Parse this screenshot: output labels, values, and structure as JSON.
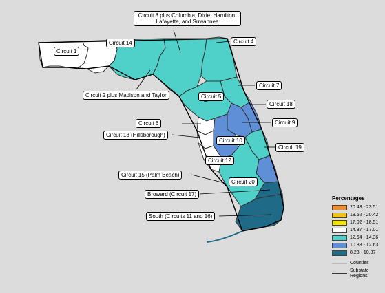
{
  "labels": {
    "circuit1": "Circuit 1",
    "circuit14": "Circuit 14",
    "circuit8": "Circuit 8 plus Columbia, Dixie, Hamilton, Lafayette, and Suwannee",
    "circuit4": "Circuit 4",
    "circuit2": "Circuit 2 plus Madison and Taylor",
    "circuit7": "Circuit 7",
    "circuit5": "Circuit 5",
    "circuit18": "Circuit 18",
    "circuit6": "Circuit 6",
    "circuit9": "Circuit 9",
    "circuit13": "Circuit 13 (Hillsborough)",
    "circuit10": "Circuit 10",
    "circuit19": "Circuit 19",
    "circuit12": "Circuit 12",
    "circuit15": "Circuit 15 (Palm Beach)",
    "circuit20": "Circuit 20",
    "circuit17": "Broward (Circuit 17)",
    "circuit11_16": "South (Circuits 11 and 16)"
  },
  "legend": {
    "title": "Percentages",
    "classes": [
      {
        "range": "20.43 - 23.51",
        "color": "#f28c28"
      },
      {
        "range": "18.52 - 20.42",
        "color": "#f2c21a"
      },
      {
        "range": "17.02 - 18.51",
        "color": "#f5e400"
      },
      {
        "range": "14.37 - 17.01",
        "color": "#ffffff"
      },
      {
        "range": "12.64 - 14.36",
        "color": "#4fd1c9"
      },
      {
        "range": "10.88 - 12.63",
        "color": "#5f8fd6"
      },
      {
        "range": "8.23 - 10.87",
        "color": "#1f6a86"
      }
    ],
    "counties_label": "Counties",
    "substate_label": "Substate Regions"
  },
  "region_values": {
    "circuit1": "14.37 - 17.01",
    "circuit14": "14.37 - 17.01",
    "circuit8": "12.64 - 14.36",
    "circuit4": "12.64 - 14.36",
    "circuit2": "12.64 - 14.36",
    "circuit7": "12.64 - 14.36",
    "circuit5": "12.64 - 14.36",
    "circuit18": "10.88 - 12.63",
    "circuit6": "14.37 - 17.01",
    "circuit9": "10.88 - 12.63",
    "circuit13": "14.37 - 17.01",
    "circuit10": "10.88 - 12.63",
    "circuit19": "12.64 - 14.36",
    "circuit12": "14.37 - 17.01",
    "circuit15": "10.88 - 12.63",
    "circuit20": "12.64 - 14.36",
    "circuit17": "8.23 - 10.87",
    "circuit11_16": "8.23 - 10.87"
  }
}
